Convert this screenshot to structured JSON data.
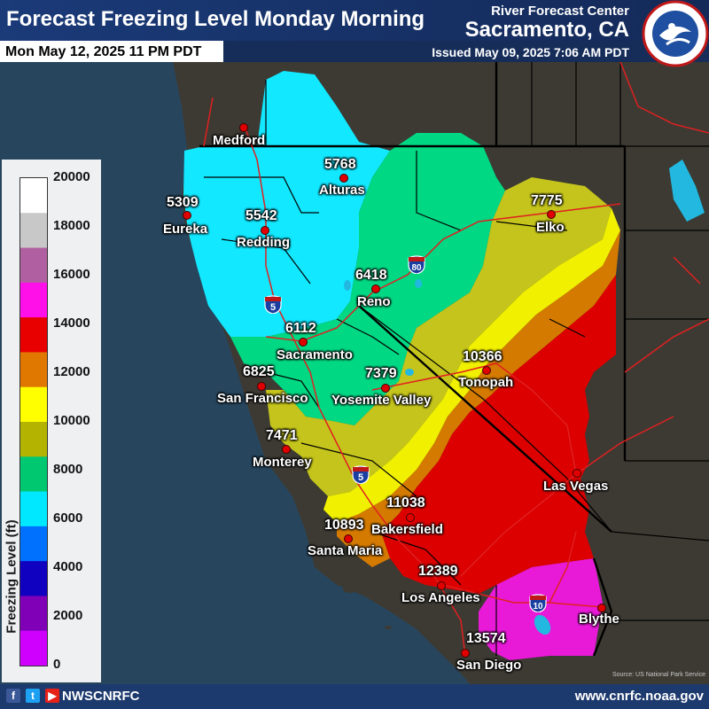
{
  "header": {
    "title": "Forecast Freezing Level Monday Morning",
    "valid_time": "Mon May 12, 2025 11 PM PDT",
    "rfc_label": "River Forecast Center",
    "rfc_city": "Sacramento, CA",
    "issued": "Issued May 09, 2025 7:06 AM PDT",
    "logo_icon": "nws-logo-icon"
  },
  "legend": {
    "title": "Freezing Level (ft)",
    "ticks": [
      "20000",
      "18000",
      "16000",
      "14000",
      "12000",
      "10000",
      "8000",
      "6000",
      "4000",
      "2000",
      "0"
    ],
    "colors": [
      "#ffffff",
      "#c8c8c8",
      "#b060a0",
      "#ff10e8",
      "#e80000",
      "#e07800",
      "#ffff00",
      "#b4b400",
      "#00c870",
      "#00e8ff",
      "#0070ff",
      "#1000c0",
      "#8000b8",
      "#d000ff"
    ]
  },
  "cities": [
    {
      "value": "5309",
      "name": "Eureka"
    },
    {
      "value": "",
      "name": "Medford"
    },
    {
      "value": "5768",
      "name": "Alturas"
    },
    {
      "value": "5542",
      "name": "Redding"
    },
    {
      "value": "7775",
      "name": "Elko"
    },
    {
      "value": "6418",
      "name": "Reno"
    },
    {
      "value": "6112",
      "name": "Sacramento"
    },
    {
      "value": "6825",
      "name": "San Francisco"
    },
    {
      "value": "7379",
      "name": "Yosemite Valley"
    },
    {
      "value": "10366",
      "name": "Tonopah"
    },
    {
      "value": "7471",
      "name": "Monterey"
    },
    {
      "value": "",
      "name": "Las Vegas"
    },
    {
      "value": "11038",
      "name": "Bakersfield"
    },
    {
      "value": "10893",
      "name": "Santa Maria"
    },
    {
      "value": "12389",
      "name": "Los Angeles"
    },
    {
      "value": "",
      "name": "Blythe"
    },
    {
      "value": "13574",
      "name": "San Diego"
    }
  ],
  "highways": [
    "5",
    "80",
    "5",
    "10"
  ],
  "footer": {
    "social_icons": [
      "facebook-icon",
      "twitter-icon",
      "youtube-icon"
    ],
    "handle": "NWSCNRFC",
    "website": "www.cnrfc.noaa.gov"
  },
  "source": "Source: US National Park Service",
  "colors": {
    "ocean": "#27465e",
    "title_bar": "#1d3a6e",
    "boundary_county": "#000000",
    "highway": "#e02020"
  }
}
